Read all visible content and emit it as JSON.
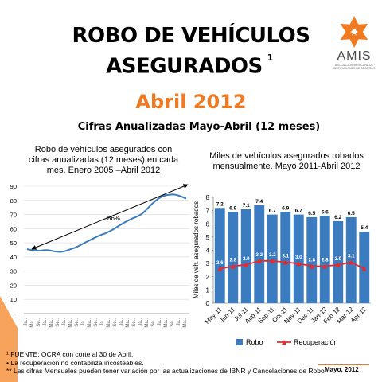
{
  "slide": {
    "title_line1": "ROBO DE VEHÍCULOS",
    "title_line2": "ASEGURADOS",
    "title_superscript": "1",
    "subtitle": "Abril 2012",
    "section_heading": "Cifras Anualizadas Mayo-Abril (12 meses)",
    "logo_text": "AMIS",
    "logo_subtext": "ASOCIACIÓN MEXICANA DE INSTITUCIONES DE SEGUROS",
    "accent_color": "#f07a22",
    "footnotes": [
      "¹ FUENTE: OCRA con corte al  30 de Abril.",
      "• La recuperación no contabiliza incosteables.",
      "** Las cifras Mensuales pueden tener variación por las actualizaciones de IBNR y Cancelaciones de Robo"
    ],
    "date": "Mayo, 2012"
  },
  "chart_data": [
    {
      "type": "line",
      "title": "Robo de vehículos asegurados con cifras anualizadas (12 meses) en cada mes. Enero 2005 –Abril 2012",
      "ylim": [
        0,
        90
      ],
      "yticks": [
        "90",
        "80",
        "70",
        "60",
        "50",
        "40",
        "30",
        "20",
        "10",
        "-"
      ],
      "x_tick_labels": [
        "Ja..",
        "Ma..",
        "Se..",
        "Ja..",
        "Ma..",
        "Se..",
        "Ja..",
        "Ma..",
        "Se..",
        "Ja..",
        "Ma..",
        "Se..",
        "Ja..",
        "Ma..",
        "Se..",
        "Ja..",
        "Ma..",
        "Se..",
        "Ja..",
        "Ma..",
        "Se..",
        "Ja..",
        "Ma..",
        "Se..",
        "Ja..",
        "Ma.."
      ],
      "series_color": "#3b7bbf",
      "values": [
        45.5,
        45,
        44.6,
        44.4,
        44.5,
        44.8,
        44.9,
        44.5,
        44,
        43.7,
        43.6,
        44,
        44.8,
        45.6,
        46.4,
        47.5,
        48.7,
        50,
        51.2,
        52.4,
        53.6,
        54.8,
        55.8,
        56.6,
        57.7,
        58.9,
        60.3,
        61.9,
        63.3,
        64.7,
        65.9,
        67.1,
        68.1,
        69.2,
        70.6,
        72.8,
        75.3,
        77.7,
        79.8,
        81.6,
        82.9,
        83.6,
        84,
        84.2,
        83.9,
        83.2,
        82.3,
        81.2
      ],
      "annotation": "86%"
    },
    {
      "type": "bar",
      "title": "Miles de vehículos asegurados robados mensualmente. Mayo 2011-Abril 2012",
      "ylabel": "Miles de veh. asegurados robados",
      "ylim": [
        0,
        8
      ],
      "yticks": [
        "0",
        "1",
        "2",
        "3",
        "4",
        "5",
        "6",
        "7",
        "8"
      ],
      "categories": [
        "May-11",
        "Jun-11",
        "Jul-11",
        "Aug-11",
        "Sep-11",
        "Oct-11",
        "Nov-11",
        "Dec-11",
        "Jan-12",
        "Feb-12",
        "Mar-12",
        "Apr-12"
      ],
      "series": [
        {
          "name": "Robo",
          "type": "bar",
          "color": "#3b7bbf",
          "values": [
            7.2,
            6.9,
            7.1,
            7.4,
            6.7,
            6.9,
            6.7,
            6.5,
            6.6,
            6.2,
            6.5,
            5.4
          ],
          "labels": [
            "7.2",
            "6.9",
            "7.1",
            "7.4",
            "6.7",
            "6.9",
            "6.7",
            "6.5",
            "6.6",
            "6.2",
            "6.5",
            "5.4"
          ]
        },
        {
          "name": "Recuperación",
          "type": "line",
          "color": "#e8282b",
          "values": [
            2.6,
            2.8,
            2.9,
            3.2,
            3.2,
            3.1,
            3.0,
            2.8,
            2.8,
            2.9,
            3.1,
            2.6
          ],
          "labels": [
            "2.6",
            "2.8",
            "2.9",
            "3.2",
            "3.2",
            "3.1",
            "3.0",
            "2.8",
            "2.8",
            "2.9",
            "3.1",
            ""
          ]
        }
      ],
      "legend_position": "bottom"
    }
  ]
}
